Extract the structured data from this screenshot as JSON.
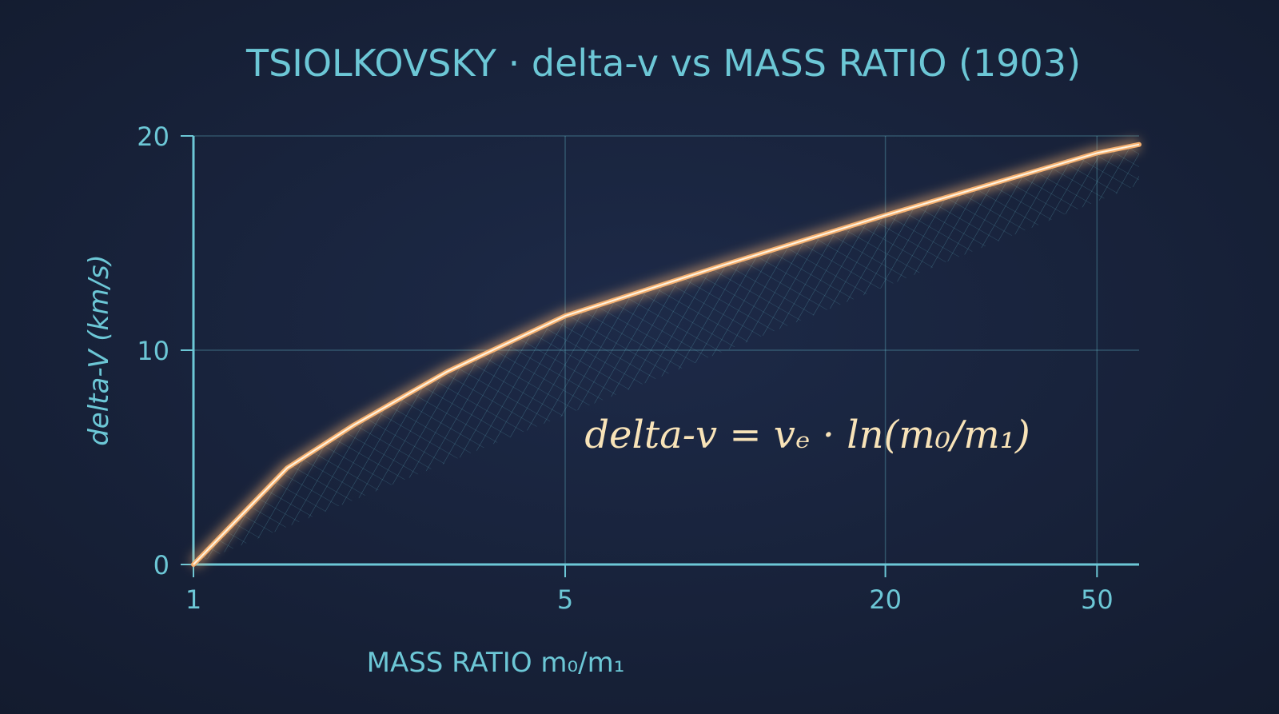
{
  "chart_data": {
    "type": "line",
    "title": "TSIOLKOVSKY · delta-v vs MASS RATIO (1903)",
    "x_label": "MASS RATIO m₀/m₁",
    "y_label": "delta-V (km/s)",
    "annotation": "delta-v = vₑ · ln(m₀/m₁)",
    "x": [
      1,
      1.5,
      2,
      3,
      5,
      10,
      20,
      50,
      60
    ],
    "series": [
      {
        "color": "#f5b070",
        "values": [
          0,
          4.5,
          6.5,
          9,
          11.6,
          14,
          16.3,
          19.2,
          19.6
        ]
      }
    ],
    "xscale": "log",
    "xlim": [
      1,
      60
    ],
    "xticks": [
      1,
      5,
      20,
      50
    ],
    "ylim": [
      0,
      20
    ],
    "yticks": [
      0,
      10,
      20
    ],
    "grid": true
  }
}
